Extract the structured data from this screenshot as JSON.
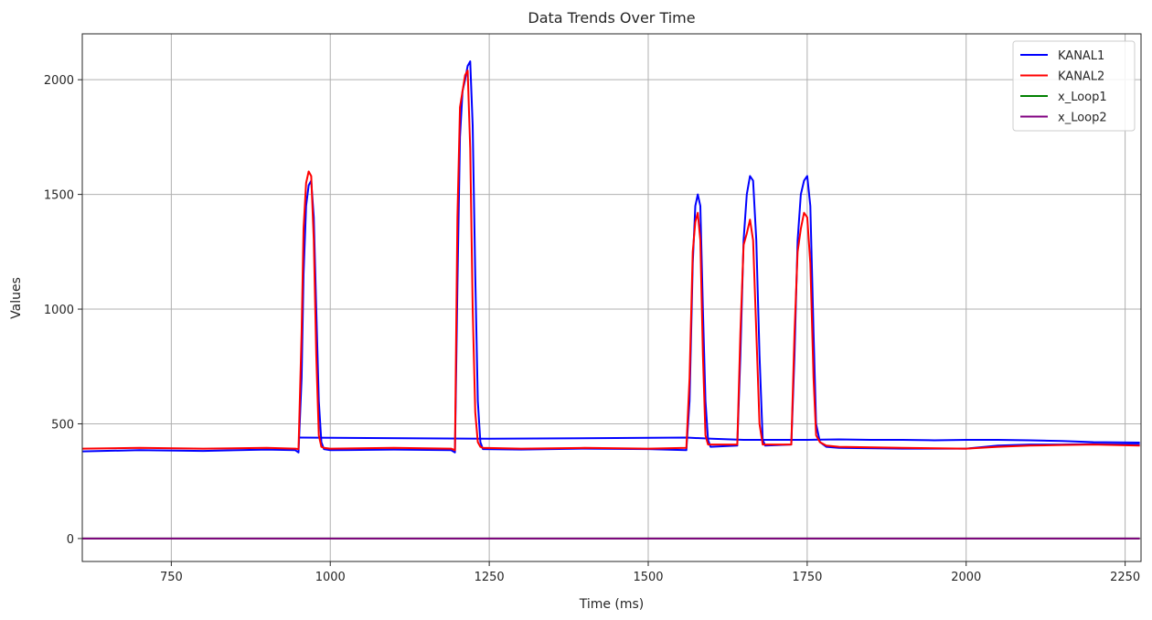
{
  "chart_data": {
    "type": "line",
    "title": "Data Trends Over Time",
    "xlabel": "Time (ms)",
    "ylabel": "Values",
    "xlim": [
      610,
      2275
    ],
    "ylim": [
      -100,
      2200
    ],
    "xticks": [
      750,
      1000,
      1250,
      1500,
      1750,
      2000,
      2250
    ],
    "yticks": [
      0,
      500,
      1000,
      1500,
      2000
    ],
    "grid": true,
    "legend_position": "top-right",
    "series": [
      {
        "name": "KANAL1",
        "color": "#0000ff",
        "x": [
          610,
          700,
          800,
          900,
          945,
          950,
          955,
          958,
          962,
          966,
          970,
          974,
          978,
          982,
          986,
          990,
          1000,
          1100,
          1190,
          1196,
          1200,
          1204,
          1208,
          1212,
          1216,
          1220,
          1224,
          1228,
          1232,
          1236,
          1240,
          1300,
          1400,
          1500,
          1560,
          1565,
          1570,
          1574,
          1578,
          1582,
          1586,
          1590,
          1594,
          1598,
          1640,
          1645,
          1650,
          1655,
          1660,
          1665,
          1670,
          1675,
          1680,
          1684,
          1725,
          1730,
          1735,
          1740,
          1745,
          1750,
          1755,
          1760,
          1764,
          1770,
          1780,
          1800,
          1900,
          2000,
          2050,
          2100,
          2150,
          2200,
          2273
        ],
        "y": [
          380,
          385,
          382,
          388,
          385,
          375,
          700,
          1150,
          1450,
          1540,
          1560,
          1400,
          1000,
          600,
          420,
          390,
          385,
          388,
          385,
          375,
          1100,
          1750,
          1950,
          2000,
          2060,
          2080,
          1800,
          1150,
          600,
          420,
          390,
          388,
          392,
          390,
          385,
          600,
          1200,
          1450,
          1500,
          1450,
          1000,
          600,
          430,
          400,
          405,
          800,
          1300,
          1500,
          1580,
          1560,
          1300,
          800,
          430,
          405,
          410,
          800,
          1300,
          1500,
          1560,
          1580,
          1450,
          900,
          500,
          420,
          400,
          395,
          392,
          392,
          405,
          410,
          410,
          412,
          410
        ]
      },
      {
        "name": "KANAL1",
        "color": "#0000ff",
        "x": [
          950,
          1250,
          1560,
          1600,
          1650,
          1700,
          1750,
          1800,
          1850,
          1900,
          1950,
          2000,
          2050,
          2100,
          2150,
          2200,
          2273
        ],
        "y": [
          440,
          435,
          440,
          435,
          430,
          430,
          430,
          432,
          430,
          430,
          428,
          430,
          430,
          428,
          425,
          420,
          418
        ]
      },
      {
        "name": "KANAL2",
        "color": "#ff0000",
        "x": [
          610,
          700,
          800,
          900,
          945,
          950,
          955,
          958,
          962,
          966,
          970,
          974,
          978,
          982,
          986,
          990,
          1000,
          1100,
          1190,
          1196,
          1200,
          1204,
          1208,
          1212,
          1216,
          1220,
          1224,
          1228,
          1232,
          1236,
          1240,
          1300,
          1400,
          1500,
          1560,
          1565,
          1570,
          1574,
          1578,
          1582,
          1586,
          1590,
          1594,
          1640,
          1645,
          1650,
          1655,
          1660,
          1665,
          1670,
          1675,
          1680,
          1725,
          1730,
          1735,
          1740,
          1745,
          1750,
          1755,
          1760,
          1764,
          1770,
          1780,
          1800,
          1900,
          2000,
          2050,
          2100,
          2150,
          2200,
          2273
        ],
        "y": [
          392,
          395,
          392,
          395,
          392,
          390,
          900,
          1350,
          1550,
          1600,
          1580,
          1300,
          800,
          450,
          400,
          395,
          392,
          395,
          392,
          385,
          1400,
          1880,
          1950,
          2020,
          2040,
          1700,
          1000,
          550,
          420,
          400,
          395,
          392,
          395,
          392,
          395,
          700,
          1250,
          1380,
          1420,
          1300,
          800,
          450,
          410,
          410,
          900,
          1280,
          1330,
          1390,
          1300,
          900,
          500,
          410,
          410,
          900,
          1250,
          1350,
          1420,
          1400,
          1200,
          700,
          450,
          420,
          405,
          400,
          395,
          392,
          400,
          405,
          408,
          410,
          405
        ]
      },
      {
        "name": "x_Loop1",
        "color": "#008000",
        "x": [
          610,
          2273
        ],
        "y": [
          0,
          0
        ]
      },
      {
        "name": "x_Loop2",
        "color": "#800080",
        "x": [
          610,
          2273
        ],
        "y": [
          0,
          0
        ]
      }
    ],
    "legend": [
      {
        "name": "KANAL1",
        "color": "#0000ff"
      },
      {
        "name": "KANAL2",
        "color": "#ff0000"
      },
      {
        "name": "x_Loop1",
        "color": "#008000"
      },
      {
        "name": "x_Loop2",
        "color": "#800080"
      }
    ]
  }
}
